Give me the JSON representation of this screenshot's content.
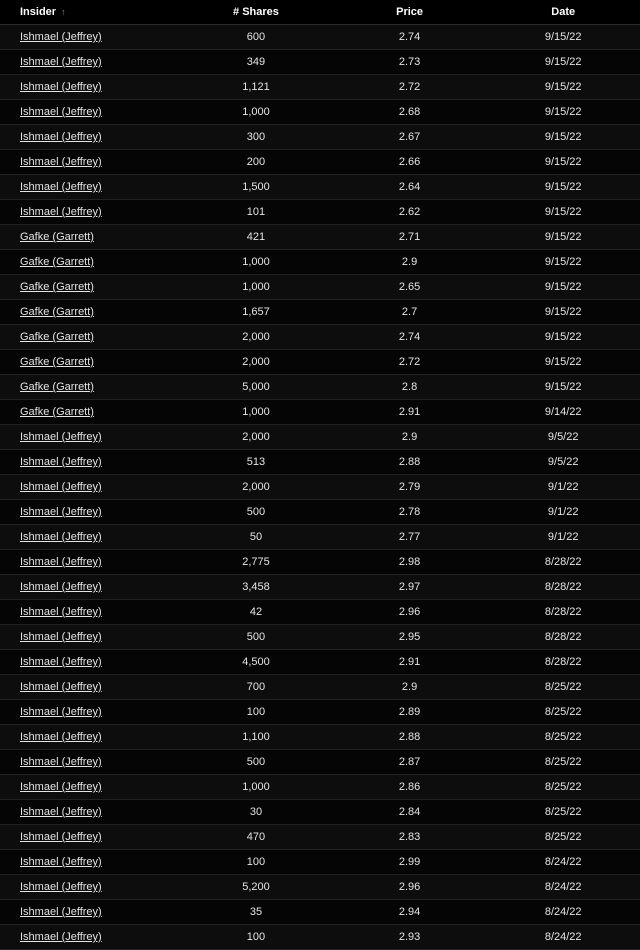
{
  "columns": {
    "insider": "Insider",
    "shares": "# Shares",
    "price": "Price",
    "date": "Date"
  },
  "sort_indicator": "↑",
  "rows": [
    {
      "insider": "Ishmael (Jeffrey)",
      "shares": "600",
      "price": "2.74",
      "date": "9/15/22"
    },
    {
      "insider": "Ishmael (Jeffrey)",
      "shares": "349",
      "price": "2.73",
      "date": "9/15/22"
    },
    {
      "insider": "Ishmael (Jeffrey)",
      "shares": "1,121",
      "price": "2.72",
      "date": "9/15/22"
    },
    {
      "insider": "Ishmael (Jeffrey)",
      "shares": "1,000",
      "price": "2.68",
      "date": "9/15/22"
    },
    {
      "insider": "Ishmael (Jeffrey)",
      "shares": "300",
      "price": "2.67",
      "date": "9/15/22"
    },
    {
      "insider": "Ishmael (Jeffrey)",
      "shares": "200",
      "price": "2.66",
      "date": "9/15/22"
    },
    {
      "insider": "Ishmael (Jeffrey)",
      "shares": "1,500",
      "price": "2.64",
      "date": "9/15/22"
    },
    {
      "insider": "Ishmael (Jeffrey)",
      "shares": "101",
      "price": "2.62",
      "date": "9/15/22"
    },
    {
      "insider": "Gafke (Garrett)",
      "shares": "421",
      "price": "2.71",
      "date": "9/15/22"
    },
    {
      "insider": "Gafke (Garrett)",
      "shares": "1,000",
      "price": "2.9",
      "date": "9/15/22"
    },
    {
      "insider": "Gafke (Garrett)",
      "shares": "1,000",
      "price": "2.65",
      "date": "9/15/22"
    },
    {
      "insider": "Gafke (Garrett)",
      "shares": "1,657",
      "price": "2.7",
      "date": "9/15/22"
    },
    {
      "insider": "Gafke (Garrett)",
      "shares": "2,000",
      "price": "2.74",
      "date": "9/15/22"
    },
    {
      "insider": "Gafke (Garrett)",
      "shares": "2,000",
      "price": "2.72",
      "date": "9/15/22"
    },
    {
      "insider": "Gafke (Garrett)",
      "shares": "5,000",
      "price": "2.8",
      "date": "9/15/22"
    },
    {
      "insider": "Gafke (Garrett)",
      "shares": "1,000",
      "price": "2.91",
      "date": "9/14/22"
    },
    {
      "insider": "Ishmael (Jeffrey)",
      "shares": "2,000",
      "price": "2.9",
      "date": "9/5/22"
    },
    {
      "insider": "Ishmael (Jeffrey)",
      "shares": "513",
      "price": "2.88",
      "date": "9/5/22"
    },
    {
      "insider": "Ishmael (Jeffrey)",
      "shares": "2,000",
      "price": "2.79",
      "date": "9/1/22"
    },
    {
      "insider": "Ishmael (Jeffrey)",
      "shares": "500",
      "price": "2.78",
      "date": "9/1/22"
    },
    {
      "insider": "Ishmael (Jeffrey)",
      "shares": "50",
      "price": "2.77",
      "date": "9/1/22"
    },
    {
      "insider": "Ishmael (Jeffrey)",
      "shares": "2,775",
      "price": "2.98",
      "date": "8/28/22"
    },
    {
      "insider": "Ishmael (Jeffrey)",
      "shares": "3,458",
      "price": "2.97",
      "date": "8/28/22"
    },
    {
      "insider": "Ishmael (Jeffrey)",
      "shares": "42",
      "price": "2.96",
      "date": "8/28/22"
    },
    {
      "insider": "Ishmael (Jeffrey)",
      "shares": "500",
      "price": "2.95",
      "date": "8/28/22"
    },
    {
      "insider": "Ishmael (Jeffrey)",
      "shares": "4,500",
      "price": "2.91",
      "date": "8/28/22"
    },
    {
      "insider": "Ishmael (Jeffrey)",
      "shares": "700",
      "price": "2.9",
      "date": "8/25/22"
    },
    {
      "insider": "Ishmael (Jeffrey)",
      "shares": "100",
      "price": "2.89",
      "date": "8/25/22"
    },
    {
      "insider": "Ishmael (Jeffrey)",
      "shares": "1,100",
      "price": "2.88",
      "date": "8/25/22"
    },
    {
      "insider": "Ishmael (Jeffrey)",
      "shares": "500",
      "price": "2.87",
      "date": "8/25/22"
    },
    {
      "insider": "Ishmael (Jeffrey)",
      "shares": "1,000",
      "price": "2.86",
      "date": "8/25/22"
    },
    {
      "insider": "Ishmael (Jeffrey)",
      "shares": "30",
      "price": "2.84",
      "date": "8/25/22"
    },
    {
      "insider": "Ishmael (Jeffrey)",
      "shares": "470",
      "price": "2.83",
      "date": "8/25/22"
    },
    {
      "insider": "Ishmael (Jeffrey)",
      "shares": "100",
      "price": "2.99",
      "date": "8/24/22"
    },
    {
      "insider": "Ishmael (Jeffrey)",
      "shares": "5,200",
      "price": "2.96",
      "date": "8/24/22"
    },
    {
      "insider": "Ishmael (Jeffrey)",
      "shares": "35",
      "price": "2.94",
      "date": "8/24/22"
    },
    {
      "insider": "Ishmael (Jeffrey)",
      "shares": "100",
      "price": "2.93",
      "date": "8/24/22"
    }
  ]
}
